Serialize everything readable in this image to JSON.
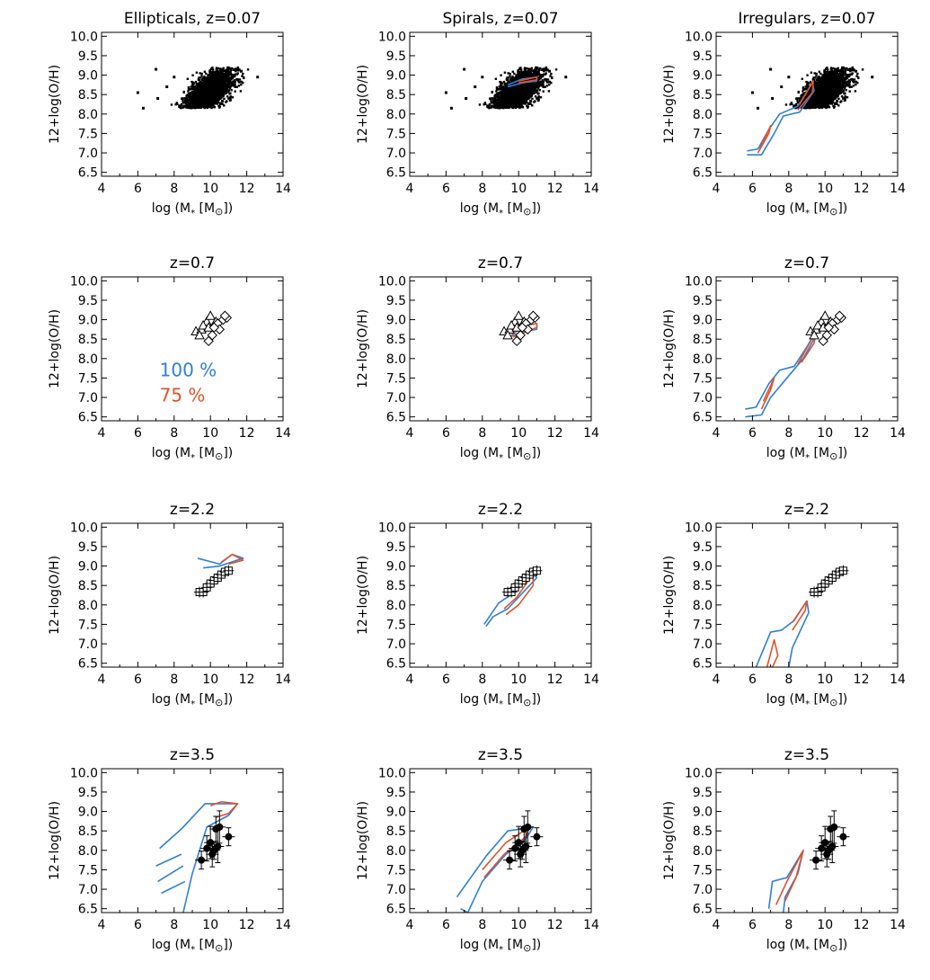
{
  "figure": {
    "colors": {
      "blue": "#2f7fd6",
      "red": "#e0522b",
      "black": "#000000"
    },
    "xlabel": "log (M",
    "xlabel_sub": "*",
    "xlabel_unit": " [M",
    "xlabel_sun": "⊙",
    "xlabel_end": "])",
    "ylabel": "12+log(O/H)",
    "legend": {
      "blue_label": "100 %",
      "red_label": "75 %"
    }
  },
  "chart_data": [
    {
      "type": "scatter",
      "title": "Ellipticals, z=0.07",
      "row": 0,
      "col": 0,
      "xlim": [
        4,
        14
      ],
      "ylim": [
        6.4,
        10.1
      ],
      "xticks": [
        4,
        6,
        8,
        10,
        12,
        14
      ],
      "yticks": [
        6.5,
        7.0,
        7.5,
        8.0,
        8.5,
        9.0,
        9.5,
        10.0
      ],
      "cloud": true,
      "obs": "none",
      "blue": [],
      "red": []
    },
    {
      "type": "scatter",
      "title": "Spirals, z=0.07",
      "row": 0,
      "col": 1,
      "xlim": [
        4,
        14
      ],
      "ylim": [
        6.4,
        10.1
      ],
      "xticks": [
        4,
        6,
        8,
        10,
        12,
        14
      ],
      "yticks": [
        6.5,
        7.0,
        7.5,
        8.0,
        8.5,
        9.0,
        9.5,
        10.0
      ],
      "cloud": true,
      "obs": "none",
      "blue": [
        [
          [
            9.4,
            8.75
          ],
          [
            10.2,
            8.9
          ],
          [
            11,
            8.95
          ],
          [
            11,
            8.85
          ],
          [
            10.2,
            8.8
          ],
          [
            9.4,
            8.7
          ]
        ]
      ],
      "red": [
        [
          [
            10,
            8.85
          ],
          [
            11,
            8.95
          ],
          [
            11,
            8.88
          ],
          [
            10,
            8.8
          ]
        ]
      ]
    },
    {
      "type": "scatter",
      "title": "Irregulars, z=0.07",
      "row": 0,
      "col": 2,
      "xlim": [
        4,
        14
      ],
      "ylim": [
        6.4,
        10.1
      ],
      "xticks": [
        4,
        6,
        8,
        10,
        12,
        14
      ],
      "yticks": [
        6.5,
        7.0,
        7.5,
        8.0,
        8.5,
        9.0,
        9.5,
        10.0
      ],
      "cloud": true,
      "obs": "none",
      "blue": [
        [
          [
            5.7,
            7.05
          ],
          [
            6.3,
            7.1
          ],
          [
            6.9,
            7.6
          ],
          [
            7.5,
            8.0
          ],
          [
            8.5,
            8.2
          ],
          [
            9.3,
            8.8
          ],
          [
            9.4,
            8.6
          ],
          [
            8.6,
            8.05
          ],
          [
            7.7,
            7.95
          ],
          [
            7.2,
            7.5
          ],
          [
            6.5,
            6.95
          ],
          [
            5.7,
            6.95
          ]
        ]
      ],
      "red": [
        [
          [
            6.4,
            7.1
          ],
          [
            7.0,
            7.7
          ],
          [
            6.9,
            7.5
          ],
          [
            6.3,
            7.0
          ]
        ],
        [
          [
            8.6,
            8.25
          ],
          [
            9.35,
            8.85
          ],
          [
            9.3,
            8.55
          ],
          [
            8.5,
            8.1
          ]
        ]
      ]
    },
    {
      "type": "scatter",
      "title": "z=0.7",
      "row": 1,
      "col": 0,
      "xlim": [
        4,
        14
      ],
      "ylim": [
        6.4,
        10.1
      ],
      "xticks": [
        4,
        6,
        8,
        10,
        12,
        14
      ],
      "yticks": [
        6.5,
        7.0,
        7.5,
        8.0,
        8.5,
        9.0,
        9.5,
        10.0
      ],
      "cloud": false,
      "obs": "z07",
      "blue": [],
      "red": [],
      "legend": true
    },
    {
      "type": "scatter",
      "title": "z=0.7",
      "row": 1,
      "col": 1,
      "xlim": [
        4,
        14
      ],
      "ylim": [
        6.4,
        10.1
      ],
      "xticks": [
        4,
        6,
        8,
        10,
        12,
        14
      ],
      "yticks": [
        6.5,
        7.0,
        7.5,
        8.0,
        8.5,
        9.0,
        9.5,
        10.0
      ],
      "cloud": false,
      "obs": "z07",
      "blue": [
        [
          [
            9.3,
            8.5
          ],
          [
            9.5,
            8.75
          ],
          [
            10.3,
            8.85
          ],
          [
            11,
            8.9
          ],
          [
            11,
            8.75
          ],
          [
            10.2,
            8.7
          ],
          [
            9.5,
            8.55
          ]
        ]
      ],
      "red": [
        [
          [
            9.6,
            8.6
          ],
          [
            10.3,
            8.85
          ],
          [
            11,
            8.9
          ],
          [
            11,
            8.8
          ],
          [
            10.2,
            8.65
          ],
          [
            9.7,
            8.55
          ]
        ]
      ]
    },
    {
      "type": "scatter",
      "title": "z=0.7",
      "row": 1,
      "col": 2,
      "xlim": [
        4,
        14
      ],
      "ylim": [
        6.4,
        10.1
      ],
      "xticks": [
        4,
        6,
        8,
        10,
        12,
        14
      ],
      "yticks": [
        6.5,
        7.0,
        7.5,
        8.0,
        8.5,
        9.0,
        9.5,
        10.0
      ],
      "cloud": false,
      "obs": "z07",
      "blue": [
        [
          [
            5.6,
            6.7
          ],
          [
            6.2,
            6.75
          ],
          [
            6.9,
            7.35
          ],
          [
            7.5,
            7.7
          ],
          [
            8.3,
            7.8
          ],
          [
            9.0,
            8.3
          ],
          [
            9.6,
            8.8
          ],
          [
            9.5,
            8.6
          ],
          [
            8.8,
            8.0
          ],
          [
            7.9,
            7.5
          ],
          [
            7.0,
            7.0
          ],
          [
            6.5,
            6.55
          ],
          [
            5.6,
            6.5
          ]
        ]
      ],
      "red": [
        [
          [
            6.6,
            6.9
          ],
          [
            7.2,
            7.5
          ],
          [
            7.0,
            7.2
          ],
          [
            6.5,
            6.7
          ]
        ],
        [
          [
            8.5,
            7.85
          ],
          [
            9.5,
            8.7
          ],
          [
            9.4,
            8.4
          ],
          [
            8.7,
            7.9
          ]
        ]
      ]
    },
    {
      "type": "scatter",
      "title": "z=2.2",
      "row": 2,
      "col": 0,
      "xlim": [
        4,
        14
      ],
      "ylim": [
        6.4,
        10.1
      ],
      "xticks": [
        4,
        6,
        8,
        10,
        12,
        14
      ],
      "yticks": [
        6.5,
        7.0,
        7.5,
        8.0,
        8.5,
        9.0,
        9.5,
        10.0
      ],
      "cloud": false,
      "obs": "z22",
      "blue": [
        [
          [
            9.3,
            9.2
          ],
          [
            10.5,
            9.05
          ],
          [
            11.2,
            9.3
          ],
          [
            11.8,
            9.2
          ],
          [
            10.5,
            9.0
          ],
          [
            9.6,
            8.95
          ]
        ]
      ],
      "red": [
        [
          [
            10.6,
            9.1
          ],
          [
            11.2,
            9.3
          ],
          [
            11.8,
            9.15
          ],
          [
            11.0,
            9.05
          ]
        ]
      ]
    },
    {
      "type": "scatter",
      "title": "z=2.2",
      "row": 2,
      "col": 1,
      "xlim": [
        4,
        14
      ],
      "ylim": [
        6.4,
        10.1
      ],
      "xticks": [
        4,
        6,
        8,
        10,
        12,
        14
      ],
      "yticks": [
        6.5,
        7.0,
        7.5,
        8.0,
        8.5,
        9.0,
        9.5,
        10.0
      ],
      "cloud": false,
      "obs": "z22",
      "blue": [
        [
          [
            8.1,
            7.5
          ],
          [
            8.9,
            8.05
          ],
          [
            9.7,
            8.3
          ],
          [
            10.7,
            8.85
          ],
          [
            11,
            8.7
          ],
          [
            10.2,
            8.3
          ],
          [
            9.4,
            7.9
          ],
          [
            8.6,
            7.7
          ],
          [
            8.2,
            7.45
          ]
        ]
      ],
      "red": [
        [
          [
            9.2,
            7.9
          ],
          [
            9.9,
            8.2
          ],
          [
            10.8,
            8.8
          ],
          [
            10.8,
            8.5
          ],
          [
            10.0,
            8.0
          ],
          [
            9.3,
            7.75
          ]
        ]
      ]
    },
    {
      "type": "scatter",
      "title": "z=2.2",
      "row": 2,
      "col": 2,
      "xlim": [
        4,
        14
      ],
      "ylim": [
        6.4,
        10.1
      ],
      "xticks": [
        4,
        6,
        8,
        10,
        12,
        14
      ],
      "yticks": [
        6.5,
        7.0,
        7.5,
        8.0,
        8.5,
        9.0,
        9.5,
        10.0
      ],
      "cloud": false,
      "obs": "z22",
      "blue": [
        [
          [
            6.2,
            6.4
          ],
          [
            7.0,
            7.3
          ],
          [
            7.6,
            7.35
          ],
          [
            8.3,
            7.6
          ],
          [
            9.0,
            8.1
          ],
          [
            9.1,
            7.8
          ],
          [
            8.2,
            6.9
          ],
          [
            8.0,
            6.4
          ]
        ]
      ],
      "red": [
        [
          [
            6.8,
            6.4
          ],
          [
            7.2,
            7.1
          ],
          [
            7.4,
            6.7
          ],
          [
            7.1,
            6.4
          ]
        ],
        [
          [
            8.2,
            7.55
          ],
          [
            9.0,
            8.1
          ],
          [
            8.9,
            7.85
          ],
          [
            8.2,
            7.35
          ]
        ]
      ]
    },
    {
      "type": "scatter",
      "title": "z=3.5",
      "row": 3,
      "col": 0,
      "xlim": [
        4,
        14
      ],
      "ylim": [
        6.4,
        10.1
      ],
      "xticks": [
        4,
        6,
        8,
        10,
        12,
        14
      ],
      "yticks": [
        6.5,
        7.0,
        7.5,
        8.0,
        8.5,
        9.0,
        9.5,
        10.0
      ],
      "cloud": false,
      "obs": "z35",
      "blue": [
        [
          [
            7.2,
            8.05
          ],
          [
            8.4,
            8.55
          ],
          [
            9.7,
            9.2
          ],
          [
            11.5,
            9.2
          ],
          [
            11.0,
            8.9
          ],
          [
            9.8,
            8.6
          ],
          [
            9.0,
            7.4
          ],
          [
            8.5,
            6.4
          ]
        ],
        [
          [
            7.0,
            7.6
          ],
          [
            8.4,
            7.9
          ]
        ],
        [
          [
            7.1,
            7.2
          ],
          [
            8.5,
            7.6
          ]
        ],
        [
          [
            7.3,
            6.9
          ],
          [
            8.6,
            7.2
          ]
        ]
      ],
      "red": [
        [
          [
            10.0,
            9.15
          ],
          [
            10.6,
            9.25
          ],
          [
            11.5,
            9.2
          ],
          [
            11.0,
            8.95
          ],
          [
            10.3,
            8.85
          ]
        ]
      ]
    },
    {
      "type": "scatter",
      "title": "z=3.5",
      "row": 3,
      "col": 1,
      "xlim": [
        4,
        14
      ],
      "ylim": [
        6.4,
        10.1
      ],
      "xticks": [
        4,
        6,
        8,
        10,
        12,
        14
      ],
      "yticks": [
        6.5,
        7.0,
        7.5,
        8.0,
        8.5,
        9.0,
        9.5,
        10.0
      ],
      "cloud": false,
      "obs": "z35",
      "blue": [
        [
          [
            6.6,
            6.8
          ],
          [
            8.2,
            7.85
          ],
          [
            9.4,
            8.5
          ],
          [
            10.8,
            8.6
          ],
          [
            10.4,
            8.3
          ],
          [
            9.3,
            7.9
          ],
          [
            8.0,
            7.2
          ],
          [
            7.2,
            6.4
          ],
          [
            6.8,
            6.5
          ]
        ]
      ],
      "red": [
        [
          [
            8.0,
            7.5
          ],
          [
            9.3,
            8.2
          ],
          [
            10.6,
            8.6
          ],
          [
            10.4,
            8.35
          ],
          [
            9.2,
            7.9
          ],
          [
            8.1,
            7.3
          ]
        ]
      ]
    },
    {
      "type": "scatter",
      "title": "z=3.5",
      "row": 3,
      "col": 2,
      "xlim": [
        4,
        14
      ],
      "ylim": [
        6.4,
        10.1
      ],
      "xticks": [
        4,
        6,
        8,
        10,
        12,
        14
      ],
      "yticks": [
        6.5,
        7.0,
        7.5,
        8.0,
        8.5,
        9.0,
        9.5,
        10.0
      ],
      "cloud": false,
      "obs": "z35",
      "blue": [
        [
          [
            6.9,
            6.5
          ],
          [
            7.1,
            7.2
          ],
          [
            7.9,
            7.3
          ],
          [
            8.8,
            8.0
          ],
          [
            8.5,
            7.4
          ],
          [
            7.8,
            6.8
          ],
          [
            7.7,
            6.4
          ]
        ]
      ],
      "red": [
        [
          [
            7.3,
            6.6
          ],
          [
            7.9,
            7.2
          ],
          [
            8.8,
            8.0
          ],
          [
            8.4,
            7.3
          ],
          [
            7.8,
            6.7
          ]
        ]
      ]
    }
  ]
}
